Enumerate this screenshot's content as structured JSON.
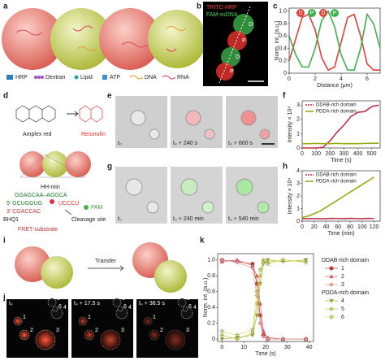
{
  "figure": {
    "panel_labels": [
      "a",
      "b",
      "c",
      "d",
      "e",
      "f",
      "g",
      "h",
      "i",
      "j",
      "k"
    ]
  },
  "panel_a": {
    "legend": [
      "HRP",
      "Dextran",
      "Lipid",
      "ATP",
      "DNA",
      "RNA"
    ]
  },
  "panel_b": {
    "labels": [
      "TRITC-HRP",
      "FAM-ssDNA"
    ],
    "domains": [
      "D",
      "P",
      "D",
      "P"
    ]
  },
  "panel_d": {
    "reactant": "Amplex red",
    "product": "Resorufin",
    "ribozyme": "HH-min",
    "sequence_top": "GGAGCAA–AGGCA",
    "sequence_mid": "5′ GCUGGUG",
    "sequence_bottom": "3′ CGACCAC",
    "cleaved": "UCCCU",
    "fluorophore": "FAM",
    "quencher": "BHQ1",
    "substrate": "FRET-substrate",
    "site": "Cleavage site"
  },
  "panel_e": {
    "times": [
      "t₀",
      "t₀ + 240 s",
      "t₀ + 600 s"
    ]
  },
  "panel_g": {
    "times": [
      "t₀",
      "t₀ + 240 min",
      "t₀ + 540 min"
    ]
  },
  "panel_i": {
    "arrow": "Transfer"
  },
  "panel_j": {
    "times": [
      "t₀",
      "t₀ + 17.5 s",
      "t₀ + 38.5 s"
    ],
    "droplets": [
      "1",
      "2",
      "3",
      "4",
      "5",
      "6"
    ]
  },
  "chart_data": [
    {
      "type": "line",
      "xlabel": "Distance (μm)",
      "ylabel": "Norm. int. (a.u.)",
      "x": [
        0,
        0.5,
        1,
        1.5,
        2,
        2.5,
        3,
        3.5,
        4,
        4.5,
        5,
        5.5,
        6,
        6.5,
        7
      ],
      "series": [
        {
          "color": "#e0403a",
          "values": [
            0.2,
            0.55,
            0.9,
            0.95,
            0.7,
            0.25,
            0.05,
            0.1,
            0.5,
            0.9,
            0.95,
            0.6,
            0.15,
            0.05,
            0.05
          ]
        },
        {
          "color": "#3cb04a",
          "values": [
            0.6,
            0.3,
            0.1,
            0.1,
            0.4,
            0.85,
            1.0,
            0.75,
            0.3,
            0.05,
            0.05,
            0.4,
            0.95,
            0.8,
            0.4
          ]
        }
      ],
      "domain_markers": [
        "D",
        "P",
        "D",
        "P"
      ],
      "xlim": [
        0,
        7
      ],
      "xticks": [
        0,
        2,
        4,
        6
      ],
      "ylim": [
        0,
        1.05
      ],
      "yticks": [
        0,
        0.2,
        0.4,
        0.6,
        0.8,
        {
          "value": 1,
          "label": "1.0"
        }
      ]
    },
    {
      "type": "line",
      "xlabel": "Time (s)",
      "ylabel": "Intensity × 10⁴",
      "x": [
        0,
        50,
        100,
        150,
        200,
        250,
        300,
        350,
        400,
        450,
        500,
        550
      ],
      "series": [
        {
          "name": "DDAB-rich domain",
          "color": "#c0304a",
          "values": [
            0,
            0,
            0,
            0.05,
            0.5,
            1.1,
            1.6,
            2.2,
            2.5,
            2.55,
            2.9,
            3.0
          ]
        },
        {
          "name": "PDDA-rich domain",
          "color": "#9aaa10",
          "values": [
            0.3,
            0.3,
            0.32,
            0.3,
            0.3,
            0.32,
            0.3,
            0.31,
            0.3,
            0.32,
            0.33,
            0.33
          ]
        }
      ],
      "xlim": [
        0,
        560
      ],
      "xticks": [
        0,
        100,
        200,
        300,
        400,
        500
      ],
      "ylim": [
        0,
        3.3
      ],
      "yticks": [
        0,
        1,
        2,
        3
      ]
    },
    {
      "type": "line",
      "xlabel": "Time (min)",
      "ylabel": "Intensity × 10⁴",
      "x": [
        0,
        10,
        20,
        30,
        40,
        50,
        60,
        70,
        80,
        90,
        100,
        110,
        120
      ],
      "series": [
        {
          "name": "DDAB-rich domain",
          "color": "#c0304a",
          "values": [
            0.2,
            0.2,
            0.21,
            0.2,
            0.2,
            0.22,
            0.21,
            0.2,
            0.22,
            0.21,
            0.2,
            0.22,
            0.21
          ]
        },
        {
          "name": "PDDA-rich domain",
          "color": "#9aaa10",
          "values": [
            0.3,
            0.4,
            0.6,
            0.8,
            1.1,
            1.4,
            1.7,
            2.0,
            2.3,
            2.6,
            2.9,
            3.2,
            3.5
          ]
        }
      ],
      "xlim": [
        0,
        130
      ],
      "xticks": [
        0,
        20,
        40,
        60,
        80,
        100,
        120
      ],
      "ylim": [
        0,
        4
      ],
      "yticks": [
        0,
        1,
        2,
        3,
        4
      ]
    },
    {
      "type": "line",
      "xlabel": "Time (s)",
      "ylabel": "Norm. int. (a.u.)",
      "legend_titles": [
        "DDAB-rich domain",
        "PDDA-rich domain"
      ],
      "x": [
        0,
        7,
        14,
        16,
        17.5,
        19,
        21,
        28,
        38.5
      ],
      "series": [
        {
          "name": "1",
          "color": "#c0392b",
          "marker": "circle",
          "values": [
            1,
            0.98,
            0.95,
            0.7,
            0.3,
            0.05,
            0,
            0,
            0
          ]
        },
        {
          "name": "2",
          "color": "#e06070",
          "marker": "triangle",
          "values": [
            0.98,
            1,
            0.93,
            0.8,
            0.45,
            0.1,
            0.02,
            0,
            0
          ]
        },
        {
          "name": "3",
          "color": "#f09090",
          "marker": "diamond",
          "values": [
            1,
            0.97,
            0.9,
            0.55,
            0.2,
            0.03,
            0,
            0,
            0
          ]
        },
        {
          "name": "4",
          "color": "#a0b020",
          "marker": "triangle-down",
          "values": [
            0,
            0.02,
            0.05,
            0.3,
            0.7,
            0.95,
            1,
            0.98,
            1
          ]
        },
        {
          "name": "5",
          "color": "#c4cc40",
          "marker": "diamond",
          "values": [
            0.05,
            0,
            0.08,
            0.45,
            0.8,
            1,
            0.97,
            1,
            0.98
          ]
        },
        {
          "name": "6",
          "color": "#d8e060",
          "marker": "star",
          "values": [
            0.1,
            0.05,
            0.12,
            0.6,
            0.88,
            0.97,
            0.95,
            1,
            0.97
          ]
        }
      ],
      "xlim": [
        -2,
        42
      ],
      "xticks": [
        0,
        10,
        20,
        30,
        40
      ],
      "ylim": [
        -0.03,
        1.08
      ],
      "yticks": [
        0,
        0.2,
        0.4,
        0.6,
        0.8,
        {
          "value": 1,
          "label": "1.0"
        }
      ]
    }
  ]
}
